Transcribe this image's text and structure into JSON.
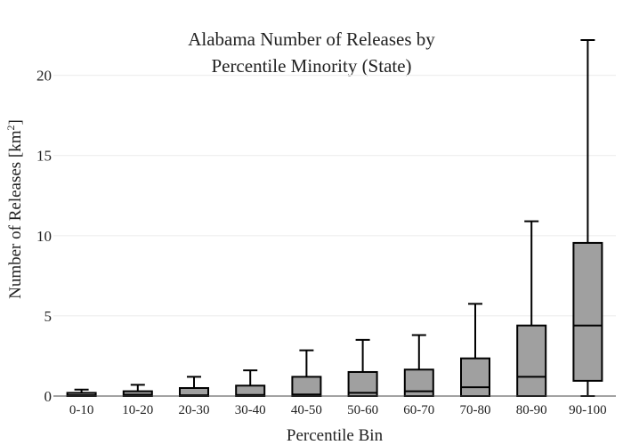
{
  "chart_data": {
    "type": "box",
    "title_line1": "Alabama Number of Releases by",
    "title_line2": "Percentile Minority (State)",
    "xlabel": "Percentile Bin",
    "ylabel": "Number of Releases  [km",
    "ylabel_superscript": "2",
    "ylabel_close": "]",
    "ylim": [
      0,
      22.2
    ],
    "yticks": [
      0,
      5,
      10,
      15,
      20
    ],
    "grid": true,
    "box_color": "#a0a0a0",
    "line_color": "#000000",
    "categories": [
      "0-10",
      "10-20",
      "20-30",
      "30-40",
      "40-50",
      "50-60",
      "60-70",
      "70-80",
      "80-90",
      "90-100"
    ],
    "boxes": [
      {
        "category": "0-10",
        "min": 0,
        "q1": 0,
        "median": 0.05,
        "q3": 0.2,
        "max": 0.4
      },
      {
        "category": "10-20",
        "min": 0,
        "q1": 0,
        "median": 0.08,
        "q3": 0.3,
        "max": 0.7
      },
      {
        "category": "20-30",
        "min": 0,
        "q1": 0,
        "median": 0.05,
        "q3": 0.5,
        "max": 1.2
      },
      {
        "category": "30-40",
        "min": 0,
        "q1": 0,
        "median": 0.07,
        "q3": 0.65,
        "max": 1.6
      },
      {
        "category": "40-50",
        "min": 0,
        "q1": 0,
        "median": 0.1,
        "q3": 1.2,
        "max": 2.85
      },
      {
        "category": "50-60",
        "min": 0,
        "q1": 0,
        "median": 0.2,
        "q3": 1.5,
        "max": 3.5
      },
      {
        "category": "60-70",
        "min": 0,
        "q1": 0,
        "median": 0.3,
        "q3": 1.65,
        "max": 3.8
      },
      {
        "category": "70-80",
        "min": 0,
        "q1": 0,
        "median": 0.55,
        "q3": 2.35,
        "max": 5.75
      },
      {
        "category": "80-90",
        "min": 0,
        "q1": 0,
        "median": 1.2,
        "q3": 4.4,
        "max": 10.9
      },
      {
        "category": "90-100",
        "min": 0,
        "q1": 0.95,
        "median": 4.4,
        "q3": 9.55,
        "max": 22.2
      }
    ]
  }
}
